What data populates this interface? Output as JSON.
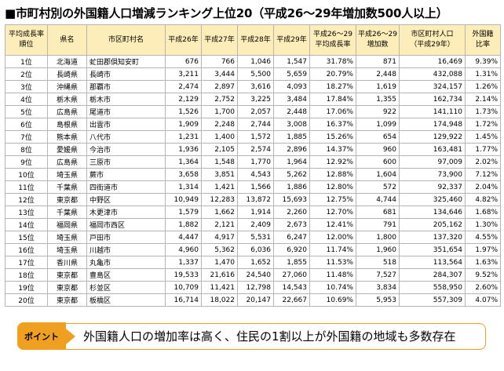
{
  "title": "■市町村別の外国籍人口増減ランキング上位20（平成26～29年増加数500人以上）",
  "table": {
    "headers": [
      {
        "l1": "平均成長率",
        "l2": "順位"
      },
      {
        "l1": "県名",
        "l2": ""
      },
      {
        "l1": "市区町村名",
        "l2": ""
      },
      {
        "l1": "平成26年",
        "l2": ""
      },
      {
        "l1": "平成27年",
        "l2": ""
      },
      {
        "l1": "平成28年",
        "l2": ""
      },
      {
        "l1": "平成29年",
        "l2": ""
      },
      {
        "l1": "平成26～29",
        "l2": "平均成長率"
      },
      {
        "l1": "平成26～29",
        "l2": "増加数"
      },
      {
        "l1": "市区町村人口",
        "l2": "（平成29年）"
      },
      {
        "l1": "外国籍",
        "l2": "比率"
      }
    ],
    "rows": [
      [
        "1位",
        "北海道",
        "虻田郡倶知安町",
        "676",
        "766",
        "1,046",
        "1,547",
        "31.78%",
        "871",
        "16,469",
        "9.39%"
      ],
      [
        "2位",
        "長崎県",
        "長崎市",
        "3,211",
        "3,444",
        "5,500",
        "5,659",
        "20.79%",
        "2,448",
        "432,088",
        "1.31%"
      ],
      [
        "3位",
        "沖縄県",
        "那覇市",
        "2,474",
        "2,897",
        "3,616",
        "4,093",
        "18.27%",
        "1,619",
        "324,157",
        "1.26%"
      ],
      [
        "4位",
        "栃木県",
        "栃木市",
        "2,129",
        "2,752",
        "3,225",
        "3,484",
        "17.84%",
        "1,355",
        "162,734",
        "2.14%"
      ],
      [
        "5位",
        "広島県",
        "尾道市",
        "1,526",
        "1,700",
        "2,057",
        "2,448",
        "17.06%",
        "922",
        "141,110",
        "1.73%"
      ],
      [
        "6位",
        "島根県",
        "出雲市",
        "1,909",
        "2,248",
        "2,744",
        "3,008",
        "16.37%",
        "1,099",
        "174,948",
        "1.72%"
      ],
      [
        "7位",
        "熊本県",
        "八代市",
        "1,231",
        "1,400",
        "1,572",
        "1,885",
        "15.26%",
        "654",
        "129,922",
        "1.45%"
      ],
      [
        "8位",
        "愛媛県",
        "今治市",
        "1,936",
        "2,105",
        "2,574",
        "2,896",
        "14.37%",
        "960",
        "163,481",
        "1.77%"
      ],
      [
        "9位",
        "広島県",
        "三原市",
        "1,364",
        "1,548",
        "1,770",
        "1,964",
        "12.92%",
        "600",
        "97,009",
        "2.02%"
      ],
      [
        "10位",
        "埼玉県",
        "蕨市",
        "3,658",
        "3,851",
        "4,543",
        "5,262",
        "12.88%",
        "1,604",
        "73,900",
        "7.12%"
      ],
      [
        "11位",
        "千葉県",
        "四街道市",
        "1,314",
        "1,421",
        "1,566",
        "1,886",
        "12.80%",
        "572",
        "92,337",
        "2.04%"
      ],
      [
        "12位",
        "東京都",
        "中野区",
        "10,949",
        "12,283",
        "13,872",
        "15,693",
        "12.75%",
        "4,744",
        "325,460",
        "4.82%"
      ],
      [
        "13位",
        "千葉県",
        "木更津市",
        "1,579",
        "1,662",
        "1,914",
        "2,260",
        "12.70%",
        "681",
        "134,646",
        "1.68%"
      ],
      [
        "14位",
        "福岡県",
        "福岡市西区",
        "1,882",
        "2,121",
        "2,409",
        "2,673",
        "12.41%",
        "791",
        "205,162",
        "1.30%"
      ],
      [
        "15位",
        "埼玉県",
        "戸田市",
        "4,447",
        "4,917",
        "5,531",
        "6,247",
        "12.00%",
        "1,800",
        "137,320",
        "4.55%"
      ],
      [
        "16位",
        "埼玉県",
        "川越市",
        "4,960",
        "5,362",
        "6,036",
        "6,920",
        "11.74%",
        "1,960",
        "351,654",
        "1.97%"
      ],
      [
        "17位",
        "香川県",
        "丸亀市",
        "1,337",
        "1,470",
        "1,652",
        "1,855",
        "11.53%",
        "518",
        "113,564",
        "1.63%"
      ],
      [
        "18位",
        "東京都",
        "豊島区",
        "19,533",
        "21,616",
        "24,540",
        "27,060",
        "11.48%",
        "7,527",
        "284,307",
        "9.52%"
      ],
      [
        "19位",
        "東京都",
        "杉並区",
        "10,709",
        "11,421",
        "12,798",
        "14,543",
        "10.74%",
        "3,834",
        "558,950",
        "2.60%"
      ],
      [
        "20位",
        "東京都",
        "板橋区",
        "16,714",
        "18,022",
        "20,147",
        "22,667",
        "10.69%",
        "5,953",
        "557,309",
        "4.07%"
      ]
    ]
  },
  "note": {
    "badge": "ポイント",
    "text": "外国籍人口の増加率は高く、住民の1割以上が外国籍の地域も多数存在"
  },
  "colors": {
    "header_bg": "#fdedb8",
    "accent": "#f0a020"
  }
}
